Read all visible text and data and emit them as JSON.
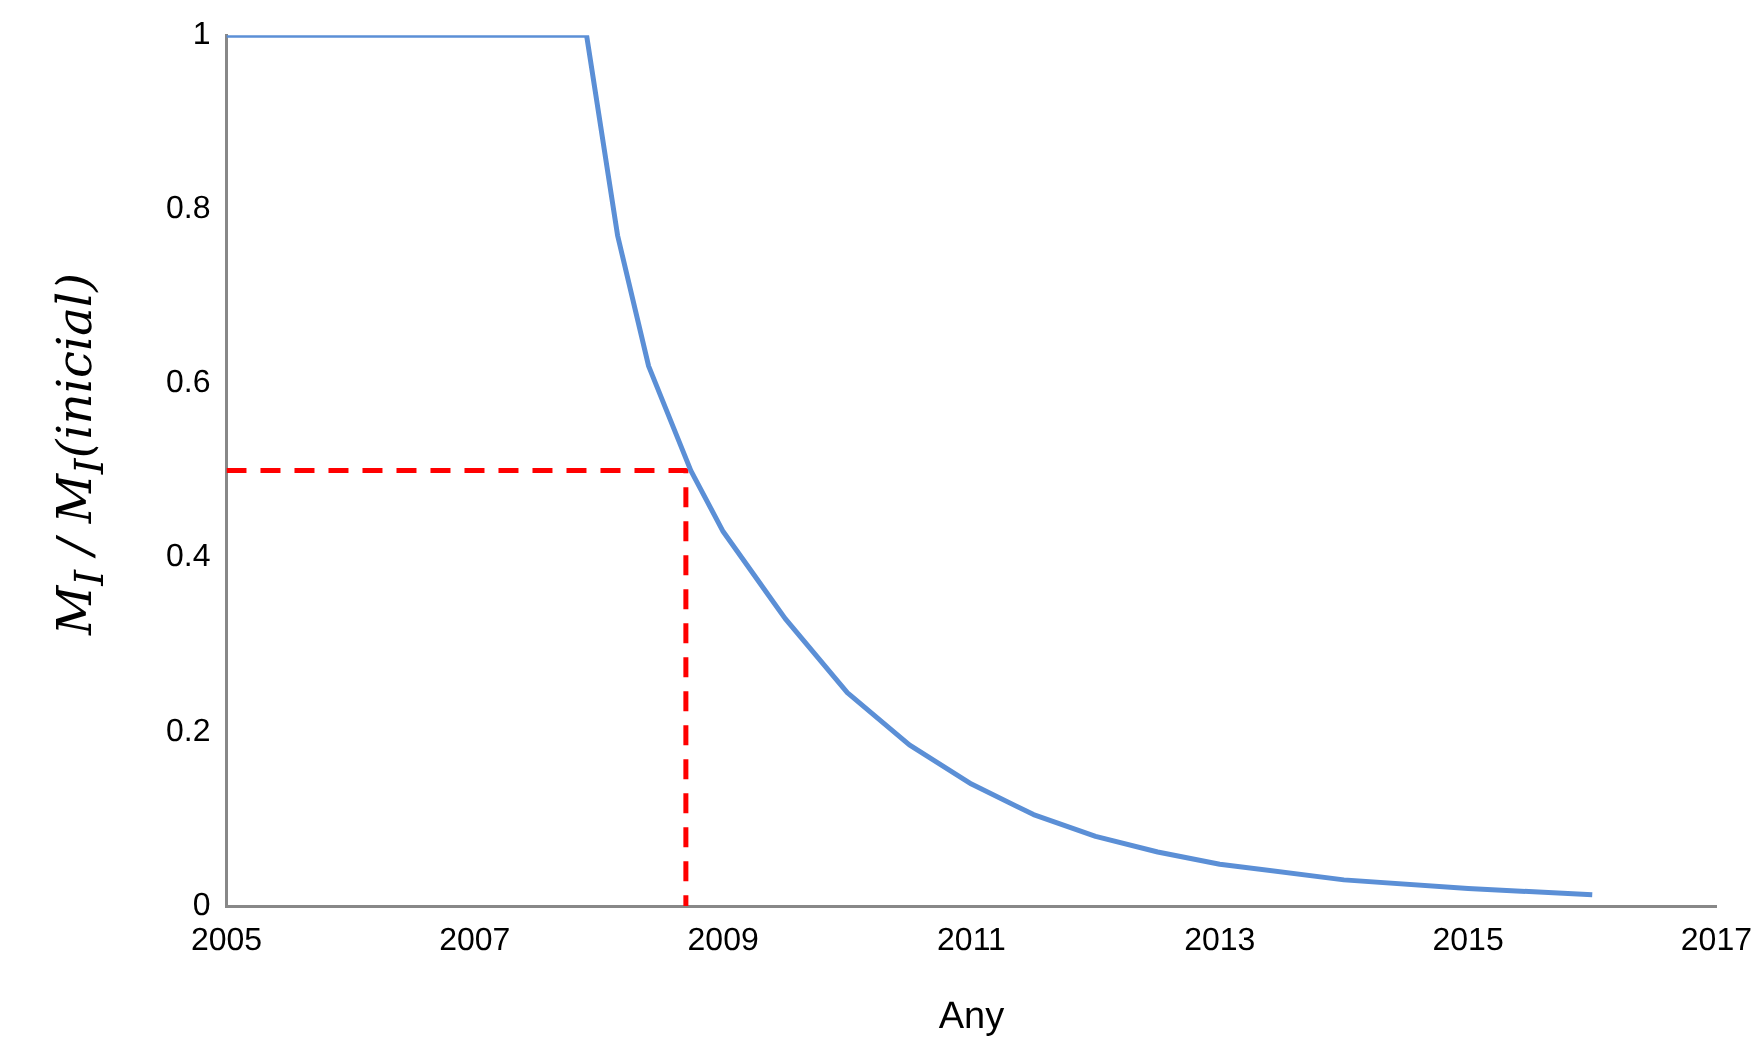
{
  "chart_data": {
    "type": "line",
    "xlabel": "Any",
    "ylabel": "M$_{I}$ / M$_{I}$(inicial)",
    "xlim": [
      2005,
      2017
    ],
    "xticks": [
      2005,
      2007,
      2009,
      2011,
      2013,
      2015,
      2017
    ],
    "ylim": [
      0,
      1
    ],
    "yticks": [
      0,
      0.2,
      0.4,
      0.6,
      0.8,
      1
    ],
    "grid": false,
    "legend": false,
    "marker": "none",
    "series": [
      {
        "color": "#5b8fd6",
        "line_style": "solid",
        "x": [
          2005,
          2007.9,
          2008.15,
          2008.4,
          2008.74,
          2009,
          2009.5,
          2010,
          2010.5,
          2011,
          2011.5,
          2012,
          2012.5,
          2013,
          2014,
          2015,
          2016
        ],
        "values": [
          1,
          1,
          0.77,
          0.62,
          0.5,
          0.43,
          0.33,
          0.245,
          0.185,
          0.14,
          0.105,
          0.08,
          0.062,
          0.048,
          0.03,
          0.02,
          0.013
        ]
      },
      {
        "color": "#ff0000",
        "line_style": "dashed",
        "x": [
          2005,
          2008.7,
          2008.7
        ],
        "values": [
          0.5,
          0.5,
          0
        ]
      }
    ]
  }
}
